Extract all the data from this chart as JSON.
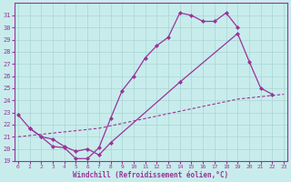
{
  "xlabel": "Windchill (Refroidissement éolien,°C)",
  "bg_color": "#c8ecec",
  "line_color": "#993399",
  "grid_color": "#aad4d4",
  "ylim": [
    19,
    32
  ],
  "xlim": [
    -0.3,
    23.3
  ],
  "yticks": [
    19,
    20,
    21,
    22,
    23,
    24,
    25,
    26,
    27,
    28,
    29,
    30,
    31
  ],
  "xticks": [
    0,
    1,
    2,
    3,
    4,
    5,
    6,
    7,
    8,
    9,
    10,
    11,
    12,
    13,
    14,
    15,
    16,
    17,
    18,
    19,
    20,
    21,
    22,
    23
  ],
  "line1_x": [
    0,
    1,
    2,
    3,
    4,
    5,
    6,
    7,
    8,
    9,
    10,
    11,
    12,
    13,
    14,
    15,
    16,
    17,
    18,
    19
  ],
  "line1_y": [
    22.8,
    21.7,
    21.0,
    20.2,
    20.1,
    19.2,
    19.2,
    20.1,
    22.5,
    24.8,
    26.0,
    27.5,
    28.5,
    29.2,
    31.2,
    31.0,
    30.5,
    30.5,
    31.2,
    30.0
  ],
  "line2_x": [
    1,
    2,
    3,
    4,
    5,
    6,
    7,
    8,
    14,
    19,
    20,
    21,
    22
  ],
  "line2_y": [
    21.7,
    21.0,
    20.8,
    20.2,
    19.8,
    20.0,
    19.5,
    20.5,
    25.5,
    29.5,
    27.2,
    25.0,
    24.5
  ],
  "line3_x": [
    0,
    1,
    2,
    3,
    4,
    5,
    6,
    7,
    8,
    9,
    10,
    11,
    12,
    13,
    14,
    15,
    16,
    17,
    18,
    19,
    20,
    21,
    22,
    23
  ],
  "line3_y": [
    21.0,
    21.1,
    21.2,
    21.3,
    21.4,
    21.5,
    21.6,
    21.7,
    21.9,
    22.1,
    22.3,
    22.5,
    22.7,
    22.9,
    23.1,
    23.3,
    23.5,
    23.7,
    23.9,
    24.1,
    24.2,
    24.3,
    24.4,
    24.5
  ]
}
